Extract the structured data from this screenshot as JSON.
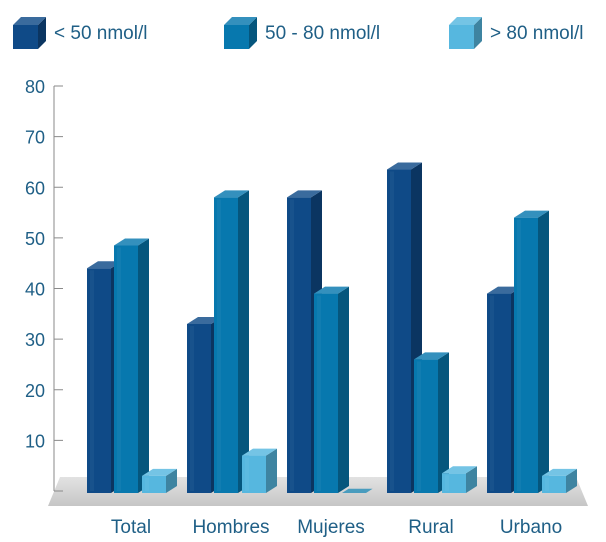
{
  "chart_data": {
    "type": "bar",
    "categories": [
      "Total",
      "Hombres",
      "Mujeres",
      "Rural",
      "Urbano"
    ],
    "series": [
      {
        "name": "< 50 nmol/l",
        "color": "#0f4a87",
        "values": [
          44,
          33,
          58,
          63.5,
          39
        ]
      },
      {
        "name": "50 - 80 nmol/l",
        "color": "#0778ae",
        "values": [
          48.5,
          58,
          39,
          26,
          54
        ]
      },
      {
        "name": "> 80 nmol/l",
        "color": "#56b7df",
        "values": [
          3,
          7,
          0,
          3.5,
          3
        ]
      }
    ],
    "y_ticks": [
      10,
      20,
      30,
      40,
      50,
      60,
      70,
      80
    ],
    "ylim": [
      0,
      80
    ],
    "title": "",
    "xlabel": "",
    "ylabel": "",
    "legend_position": "top",
    "grid": false,
    "style": "3d-bars"
  }
}
